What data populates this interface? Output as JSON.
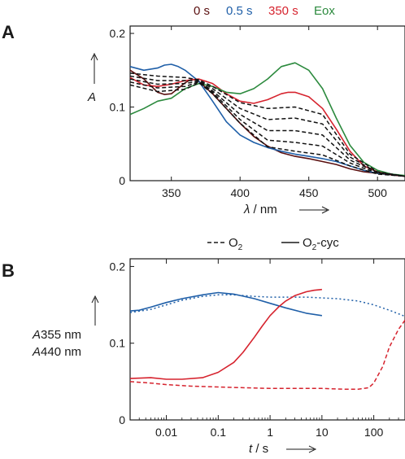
{
  "chart_data": [
    {
      "panel_label": "A",
      "type": "line",
      "xlabel_sym": "λ",
      "xlabel_unit": " / nm",
      "ylabel": "A",
      "xlim": [
        320,
        520
      ],
      "ylim": [
        0,
        0.21
      ],
      "xticks": [
        350,
        400,
        450,
        500
      ],
      "yticks": [
        0,
        0.1,
        0.2
      ],
      "ytick_labels": [
        "0",
        "0.1",
        "0.2"
      ],
      "legend_placement": "top",
      "legend": [
        {
          "label": "0 s",
          "color": "#5a0f0f"
        },
        {
          "label": "0.5 s",
          "color": "#1f5fa8"
        },
        {
          "label": "350 s",
          "color": "#d6232e"
        },
        {
          "label": "Eox",
          "color": "#2c8a3e"
        }
      ],
      "series": [
        {
          "name": "0 s",
          "color": "#5a0f0f",
          "style": "solid",
          "x": [
            320,
            330,
            340,
            345,
            350,
            360,
            365,
            370,
            380,
            390,
            400,
            410,
            420,
            430,
            440,
            450,
            460,
            470,
            480,
            490,
            500,
            510,
            520
          ],
          "y": [
            0.15,
            0.138,
            0.12,
            0.117,
            0.118,
            0.133,
            0.138,
            0.135,
            0.118,
            0.098,
            0.078,
            0.06,
            0.047,
            0.038,
            0.033,
            0.03,
            0.026,
            0.022,
            0.016,
            0.012,
            0.01,
            0.008,
            0.006
          ]
        },
        {
          "name": "0.5 s",
          "color": "#1f5fa8",
          "style": "solid",
          "x": [
            320,
            330,
            340,
            345,
            350,
            355,
            360,
            370,
            380,
            390,
            400,
            410,
            420,
            430,
            440,
            450,
            460,
            470,
            480,
            490,
            500,
            510,
            520
          ],
          "y": [
            0.155,
            0.15,
            0.153,
            0.157,
            0.158,
            0.155,
            0.15,
            0.135,
            0.108,
            0.08,
            0.062,
            0.052,
            0.045,
            0.04,
            0.036,
            0.033,
            0.03,
            0.026,
            0.02,
            0.014,
            0.01,
            0.008,
            0.006
          ]
        },
        {
          "name": "350 s",
          "color": "#d6232e",
          "style": "solid",
          "x": [
            320,
            330,
            340,
            350,
            360,
            370,
            380,
            390,
            400,
            410,
            420,
            430,
            435,
            440,
            450,
            460,
            470,
            480,
            490,
            500,
            510,
            520
          ],
          "y": [
            0.14,
            0.13,
            0.128,
            0.131,
            0.136,
            0.138,
            0.132,
            0.118,
            0.108,
            0.105,
            0.11,
            0.118,
            0.12,
            0.12,
            0.114,
            0.098,
            0.07,
            0.04,
            0.02,
            0.012,
            0.008,
            0.006
          ]
        },
        {
          "name": "Eox",
          "color": "#2c8a3e",
          "style": "solid",
          "x": [
            320,
            330,
            340,
            350,
            360,
            370,
            380,
            390,
            400,
            410,
            420,
            430,
            440,
            450,
            460,
            470,
            480,
            490,
            500,
            510,
            520
          ],
          "y": [
            0.09,
            0.098,
            0.108,
            0.112,
            0.125,
            0.132,
            0.128,
            0.12,
            0.118,
            0.125,
            0.138,
            0.155,
            0.16,
            0.15,
            0.125,
            0.085,
            0.048,
            0.025,
            0.014,
            0.009,
            0.007
          ]
        },
        {
          "name": "",
          "color": "#111111",
          "style": "dashed",
          "x": [
            320,
            340,
            360,
            370,
            380,
            400,
            420,
            440,
            460,
            480,
            500,
            520
          ],
          "y": [
            0.146,
            0.142,
            0.14,
            0.137,
            0.128,
            0.106,
            0.098,
            0.1,
            0.09,
            0.036,
            0.012,
            0.006
          ]
        },
        {
          "name": "",
          "color": "#111111",
          "style": "dashed",
          "x": [
            320,
            340,
            360,
            370,
            380,
            400,
            420,
            440,
            460,
            480,
            500,
            520
          ],
          "y": [
            0.142,
            0.136,
            0.136,
            0.136,
            0.125,
            0.098,
            0.083,
            0.085,
            0.077,
            0.032,
            0.011,
            0.006
          ]
        },
        {
          "name": "",
          "color": "#111111",
          "style": "dashed",
          "x": [
            320,
            340,
            360,
            370,
            380,
            400,
            420,
            440,
            460,
            480,
            500,
            520
          ],
          "y": [
            0.138,
            0.131,
            0.132,
            0.135,
            0.122,
            0.09,
            0.068,
            0.068,
            0.062,
            0.028,
            0.011,
            0.006
          ]
        },
        {
          "name": "",
          "color": "#111111",
          "style": "dashed",
          "x": [
            320,
            340,
            360,
            370,
            380,
            400,
            420,
            440,
            460,
            480,
            500,
            520
          ],
          "y": [
            0.134,
            0.126,
            0.128,
            0.134,
            0.12,
            0.083,
            0.055,
            0.052,
            0.047,
            0.024,
            0.01,
            0.006
          ]
        },
        {
          "name": "",
          "color": "#111111",
          "style": "dashed",
          "x": [
            320,
            340,
            360,
            370,
            380,
            400,
            420,
            440,
            460,
            480,
            500,
            520
          ],
          "y": [
            0.13,
            0.121,
            0.124,
            0.133,
            0.118,
            0.078,
            0.046,
            0.04,
            0.035,
            0.02,
            0.009,
            0.006
          ]
        }
      ]
    },
    {
      "panel_label": "B",
      "type": "line",
      "x_scale": "log",
      "xlabel_sym": "t",
      "xlabel_unit": " / s",
      "xlim": [
        0.002,
        400
      ],
      "ylim": [
        0,
        0.21
      ],
      "xticks": [
        0.01,
        0.1,
        1,
        10,
        100
      ],
      "xtick_labels": [
        "0.01",
        "0.1",
        "1",
        "10",
        "100"
      ],
      "yticks": [
        0,
        0.1,
        0.2
      ],
      "ytick_labels": [
        "0",
        "0.1",
        "0.2"
      ],
      "ylabel_lines": [
        {
          "sym": "A",
          "rest": "355 nm",
          "color": "#1f5fa8"
        },
        {
          "sym": "A",
          "rest": "440 nm",
          "color": "#d6232e"
        }
      ],
      "legend_placement": "top",
      "legend": [
        {
          "label": "O",
          "sub": "2",
          "suffix": "",
          "style": "dashed"
        },
        {
          "label": "O",
          "sub": "2",
          "suffix": "-cyc",
          "style": "solid"
        }
      ],
      "series": [
        {
          "name": "A355 nm O2-cyc",
          "color": "#1f5fa8",
          "style": "solid",
          "x": [
            0.002,
            0.003,
            0.005,
            0.01,
            0.02,
            0.05,
            0.1,
            0.2,
            0.5,
            1,
            2,
            5,
            10
          ],
          "y": [
            0.142,
            0.143,
            0.147,
            0.153,
            0.158,
            0.163,
            0.166,
            0.164,
            0.158,
            0.152,
            0.146,
            0.139,
            0.136
          ]
        },
        {
          "name": "A355 nm O2",
          "color": "#1f5fa8",
          "style": "dotted",
          "x": [
            0.002,
            0.005,
            0.01,
            0.02,
            0.05,
            0.1,
            0.2,
            0.5,
            1,
            2,
            5,
            10,
            20,
            50,
            100,
            200,
            400
          ],
          "y": [
            0.14,
            0.144,
            0.15,
            0.156,
            0.161,
            0.163,
            0.163,
            0.161,
            0.16,
            0.16,
            0.16,
            0.159,
            0.158,
            0.155,
            0.15,
            0.143,
            0.135
          ]
        },
        {
          "name": "A440 nm O2-cyc",
          "color": "#d6232e",
          "style": "solid",
          "x": [
            0.002,
            0.005,
            0.01,
            0.02,
            0.05,
            0.1,
            0.2,
            0.3,
            0.5,
            0.7,
            1,
            1.5,
            2,
            3,
            5,
            7,
            10
          ],
          "y": [
            0.054,
            0.055,
            0.053,
            0.053,
            0.055,
            0.062,
            0.075,
            0.088,
            0.108,
            0.122,
            0.136,
            0.148,
            0.155,
            0.162,
            0.167,
            0.169,
            0.17
          ]
        },
        {
          "name": "A440 nm O2",
          "color": "#d6232e",
          "style": "dashed",
          "x": [
            0.002,
            0.005,
            0.01,
            0.03,
            0.1,
            0.3,
            1,
            3,
            10,
            30,
            50,
            80,
            100,
            150,
            200,
            300,
            400
          ],
          "y": [
            0.05,
            0.048,
            0.046,
            0.044,
            0.043,
            0.042,
            0.041,
            0.041,
            0.041,
            0.04,
            0.04,
            0.042,
            0.048,
            0.07,
            0.095,
            0.118,
            0.13
          ]
        }
      ]
    }
  ]
}
